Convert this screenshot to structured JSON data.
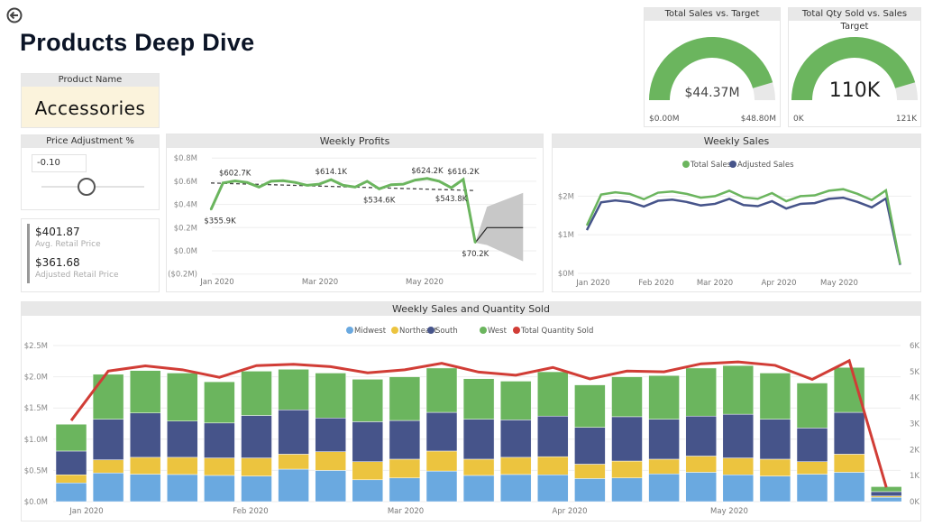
{
  "page_title": "Products Deep Dive",
  "product_name": {
    "label": "Product Name",
    "value": "Accessories"
  },
  "price_adjustment": {
    "label": "Price Adjustment %",
    "value": "-0.10",
    "slider_fraction": 0.5
  },
  "prices": {
    "avg_value": "$401.87",
    "avg_label": "Avg. Retail Price",
    "adj_value": "$361.68",
    "adj_label": "Adjusted Retail Price"
  },
  "gauges": [
    {
      "title": "Total Sales vs. Target",
      "value": "$44.37M",
      "min": "$0.00M",
      "max": "$48.80M",
      "fraction": 0.909
    },
    {
      "title": "Total Qty Sold vs. Sales Target",
      "value": "110K",
      "min": "0K",
      "max": "121K",
      "fraction": 0.909
    }
  ],
  "colors": {
    "green": "#6bb55e",
    "navy": "#46548a",
    "blue": "#6aa9e0",
    "yellow": "#ecc43f",
    "red": "#d13d36"
  },
  "chart_data": [
    {
      "type": "line",
      "title": "Weekly Profits",
      "yticks": [
        "$0.8M",
        "$0.6M",
        "$0.4M",
        "$0.2M",
        "$0.0M",
        "($0.2M)"
      ],
      "ylim": [
        -0.2,
        0.8
      ],
      "xticks": [
        "Jan 2020",
        "Mar 2020",
        "May 2020"
      ],
      "values": [
        0.3559,
        0.585,
        0.6027,
        0.59,
        0.55,
        0.6,
        0.605,
        0.59,
        0.565,
        0.575,
        0.6141,
        0.565,
        0.55,
        0.6,
        0.5346,
        0.57,
        0.575,
        0.61,
        0.6242,
        0.6,
        0.5438,
        0.6162,
        0.0702
      ],
      "data_labels": [
        {
          "i": 0,
          "text": "$355.9K"
        },
        {
          "i": 2,
          "text": "$602.7K"
        },
        {
          "i": 10,
          "text": "$614.1K"
        },
        {
          "i": 14,
          "text": "$534.6K"
        },
        {
          "i": 18,
          "text": "$624.2K"
        },
        {
          "i": 20,
          "text": "$543.8K"
        },
        {
          "i": 21,
          "text": "$616.2K"
        },
        {
          "i": 22,
          "text": "$70.2K"
        }
      ],
      "trend": [
        0.585,
        0.52
      ],
      "forecast": {
        "value": 0.2,
        "upper": [
          0.38,
          0.5
        ],
        "lower": [
          0.05,
          -0.09
        ]
      }
    },
    {
      "type": "line",
      "title": "Weekly Sales",
      "yticks": [
        "$2M",
        "$1M",
        "$0M"
      ],
      "ylim": [
        0,
        2.5
      ],
      "xticks": [
        "Jan 2020",
        "Feb 2020",
        "Mar 2020",
        "Apr 2020",
        "May 2020"
      ],
      "series": [
        {
          "name": "Total Sales",
          "values": [
            1.24,
            2.04,
            2.1,
            2.06,
            1.92,
            2.09,
            2.12,
            2.06,
            1.96,
            2.0,
            2.14,
            1.97,
            1.93,
            2.08,
            1.87,
            2.0,
            2.02,
            2.14,
            2.18,
            2.06,
            1.9,
            2.15,
            0.24
          ]
        },
        {
          "name": "Adjusted Sales",
          "values": [
            1.12,
            1.84,
            1.89,
            1.85,
            1.73,
            1.88,
            1.91,
            1.85,
            1.76,
            1.8,
            1.93,
            1.77,
            1.74,
            1.87,
            1.68,
            1.8,
            1.82,
            1.93,
            1.96,
            1.85,
            1.71,
            1.94,
            0.22
          ]
        }
      ]
    },
    {
      "type": "bar",
      "title": "Weekly Sales and Quantity Sold",
      "stacked": true,
      "ylim": [
        0,
        2.5
      ],
      "y2lim": [
        0,
        6
      ],
      "yticks": [
        "$2.5M",
        "$2.0M",
        "$1.5M",
        "$1.0M",
        "$0.5M",
        "$0.0M"
      ],
      "y2ticks": [
        "6K",
        "5K",
        "4K",
        "3K",
        "2K",
        "1K",
        "0K"
      ],
      "xticks": [
        "Jan 2020",
        "Feb 2020",
        "Mar 2020",
        "Apr 2020",
        "May 2020"
      ],
      "series": [
        {
          "name": "Midwest",
          "values": [
            0.3,
            0.46,
            0.44,
            0.435,
            0.42,
            0.41,
            0.52,
            0.5,
            0.35,
            0.38,
            0.49,
            0.42,
            0.435,
            0.43,
            0.37,
            0.38,
            0.445,
            0.47,
            0.43,
            0.41,
            0.44,
            0.47,
            0.07
          ]
        },
        {
          "name": "Northeast",
          "values": [
            0.13,
            0.21,
            0.27,
            0.275,
            0.28,
            0.29,
            0.24,
            0.3,
            0.29,
            0.3,
            0.32,
            0.26,
            0.275,
            0.29,
            0.23,
            0.27,
            0.235,
            0.26,
            0.27,
            0.27,
            0.2,
            0.29,
            0.02
          ]
        },
        {
          "name": "South",
          "values": [
            0.38,
            0.65,
            0.71,
            0.58,
            0.56,
            0.68,
            0.71,
            0.54,
            0.64,
            0.62,
            0.62,
            0.64,
            0.6,
            0.65,
            0.59,
            0.71,
            0.64,
            0.64,
            0.7,
            0.64,
            0.54,
            0.67,
            0.07
          ]
        },
        {
          "name": "West",
          "values": [
            0.43,
            0.72,
            0.68,
            0.77,
            0.66,
            0.71,
            0.65,
            0.72,
            0.68,
            0.7,
            0.71,
            0.65,
            0.62,
            0.71,
            0.68,
            0.64,
            0.7,
            0.77,
            0.78,
            0.74,
            0.72,
            0.72,
            0.08
          ]
        }
      ],
      "line": {
        "name": "Total Quantity Sold",
        "values": [
          3.12,
          5.02,
          5.22,
          5.07,
          4.78,
          5.23,
          5.28,
          5.19,
          4.95,
          5.07,
          5.32,
          4.98,
          4.86,
          5.16,
          4.72,
          5.02,
          4.99,
          5.3,
          5.37,
          5.24,
          4.7,
          5.42,
          0.55
        ]
      }
    }
  ]
}
